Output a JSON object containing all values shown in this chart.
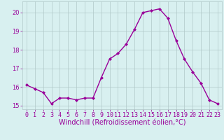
{
  "x": [
    0,
    1,
    2,
    3,
    4,
    5,
    6,
    7,
    8,
    9,
    10,
    11,
    12,
    13,
    14,
    15,
    16,
    17,
    18,
    19,
    20,
    21,
    22,
    23
  ],
  "y": [
    16.1,
    15.9,
    15.7,
    15.1,
    15.4,
    15.4,
    15.3,
    15.4,
    15.4,
    16.5,
    17.5,
    17.8,
    18.3,
    19.1,
    20.0,
    20.1,
    20.2,
    19.7,
    18.5,
    17.5,
    16.8,
    16.2,
    15.3,
    15.1
  ],
  "line_color": "#990099",
  "marker": "D",
  "marker_size": 2.0,
  "bg_color": "#d8f0f0",
  "grid_color": "#b0c8c8",
  "xlabel": "Windchill (Refroidissement éolien,°C)",
  "xlabel_fontsize": 7.0,
  "tick_fontsize": 6.0,
  "ylim": [
    14.8,
    20.6
  ],
  "xlim": [
    -0.5,
    23.5
  ],
  "yticks": [
    15,
    16,
    17,
    18,
    19,
    20
  ],
  "xticks": [
    0,
    1,
    2,
    3,
    4,
    5,
    6,
    7,
    8,
    9,
    10,
    11,
    12,
    13,
    14,
    15,
    16,
    17,
    18,
    19,
    20,
    21,
    22,
    23
  ],
  "linewidth": 1.0
}
